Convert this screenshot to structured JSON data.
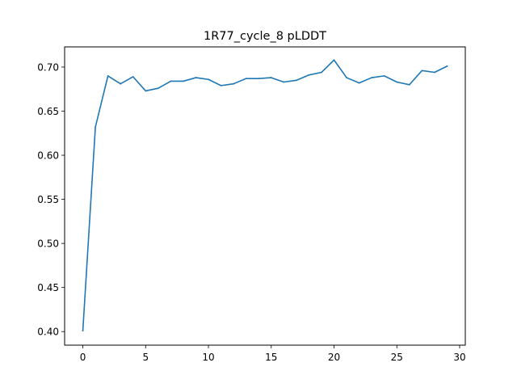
{
  "chart_data": {
    "type": "line",
    "title": "1R77_cycle_8 pLDDT",
    "xlabel": "",
    "ylabel": "",
    "xlim": [
      -1.45,
      30.45
    ],
    "ylim": [
      0.3846,
      0.7229
    ],
    "x_ticks": [
      0,
      5,
      10,
      15,
      20,
      25,
      30
    ],
    "y_ticks": [
      0.4,
      0.45,
      0.5,
      0.55,
      0.6,
      0.65,
      0.7
    ],
    "grid": false,
    "legend": "none",
    "series": [
      {
        "color": "#1f77b4",
        "x": [
          0,
          1,
          2,
          3,
          4,
          5,
          6,
          7,
          8,
          9,
          10,
          11,
          12,
          13,
          14,
          15,
          16,
          17,
          18,
          19,
          20,
          21,
          22,
          23,
          24,
          25,
          26,
          27,
          28,
          29
        ],
        "values": [
          0.401,
          0.632,
          0.69,
          0.681,
          0.689,
          0.673,
          0.676,
          0.684,
          0.684,
          0.688,
          0.686,
          0.679,
          0.681,
          0.687,
          0.687,
          0.688,
          0.683,
          0.685,
          0.691,
          0.694,
          0.708,
          0.688,
          0.682,
          0.688,
          0.69,
          0.683,
          0.68,
          0.696,
          0.694,
          0.701
        ]
      }
    ]
  }
}
